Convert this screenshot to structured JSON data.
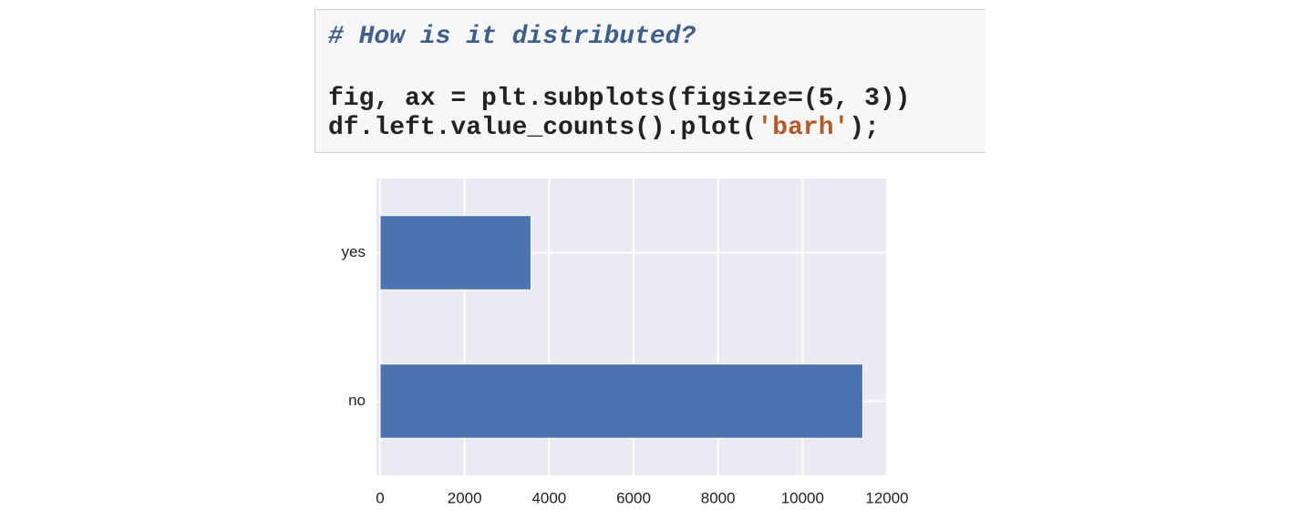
{
  "code": {
    "lines": [
      [
        "# How is it distributed?"
      ],
      [
        "fig, ax = plt.subplots(figsize=(5, 3))"
      ],
      [
        "df.left.value_counts().plot(",
        "'barh'",
        ");"
      ]
    ]
  },
  "chart_data": {
    "type": "barh",
    "categories": [
      "no",
      "yes"
    ],
    "values": [
      11428,
      3571
    ],
    "color": "#4c72b0",
    "xlim": [
      0,
      12000
    ],
    "xticks": [
      0,
      2000,
      4000,
      6000,
      8000,
      10000,
      12000
    ],
    "grid": true,
    "background": "#eaeaf2"
  }
}
